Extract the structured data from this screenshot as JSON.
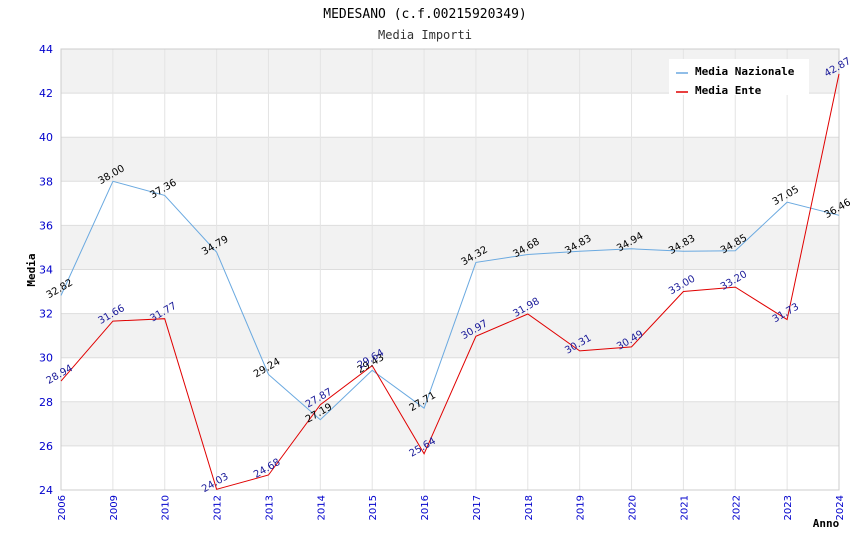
{
  "chart_data": {
    "type": "line",
    "title": "MEDESANO (c.f.00215920349)",
    "subtitle": "Media Importi",
    "xlabel": "Anno",
    "ylabel": "Media",
    "ylim": [
      24,
      44
    ],
    "yticks": [
      "24",
      "26",
      "28",
      "30",
      "32",
      "34",
      "36",
      "38",
      "40",
      "42",
      "44"
    ],
    "categories": [
      "2006",
      "2009",
      "2010",
      "2012",
      "2013",
      "2014",
      "2015",
      "2016",
      "2017",
      "2018",
      "2019",
      "2020",
      "2021",
      "2022",
      "2023",
      "2024"
    ],
    "series": [
      {
        "name": "Media Nazionale",
        "color": "#6aa9e0",
        "values": [
          32.82,
          38.0,
          37.36,
          34.79,
          29.24,
          27.19,
          29.43,
          27.71,
          34.32,
          34.68,
          34.83,
          34.94,
          34.83,
          34.85,
          37.05,
          36.46
        ],
        "labels": [
          "32.82",
          "38.00",
          "37.36",
          "34.79",
          "29.24",
          "27.19",
          "29.43",
          "27.71",
          "34.32",
          "34.68",
          "34.83",
          "34.94",
          "34.83",
          "34.85",
          "37.05",
          "36.46"
        ]
      },
      {
        "name": "Media Ente",
        "color": "#e00000",
        "values": [
          28.94,
          31.66,
          31.77,
          24.03,
          24.68,
          27.87,
          29.64,
          25.64,
          30.97,
          31.98,
          30.31,
          30.49,
          33.0,
          33.2,
          31.73,
          42.87
        ],
        "labels": [
          "28.94",
          "31.66",
          "31.77",
          "24.03",
          "24.68",
          "27.87",
          "29.64",
          "25.64",
          "30.97",
          "31.98",
          "30.31",
          "30.49",
          "33.00",
          "33.20",
          "31.73",
          "42.87"
        ]
      }
    ],
    "legend": "top-right"
  }
}
